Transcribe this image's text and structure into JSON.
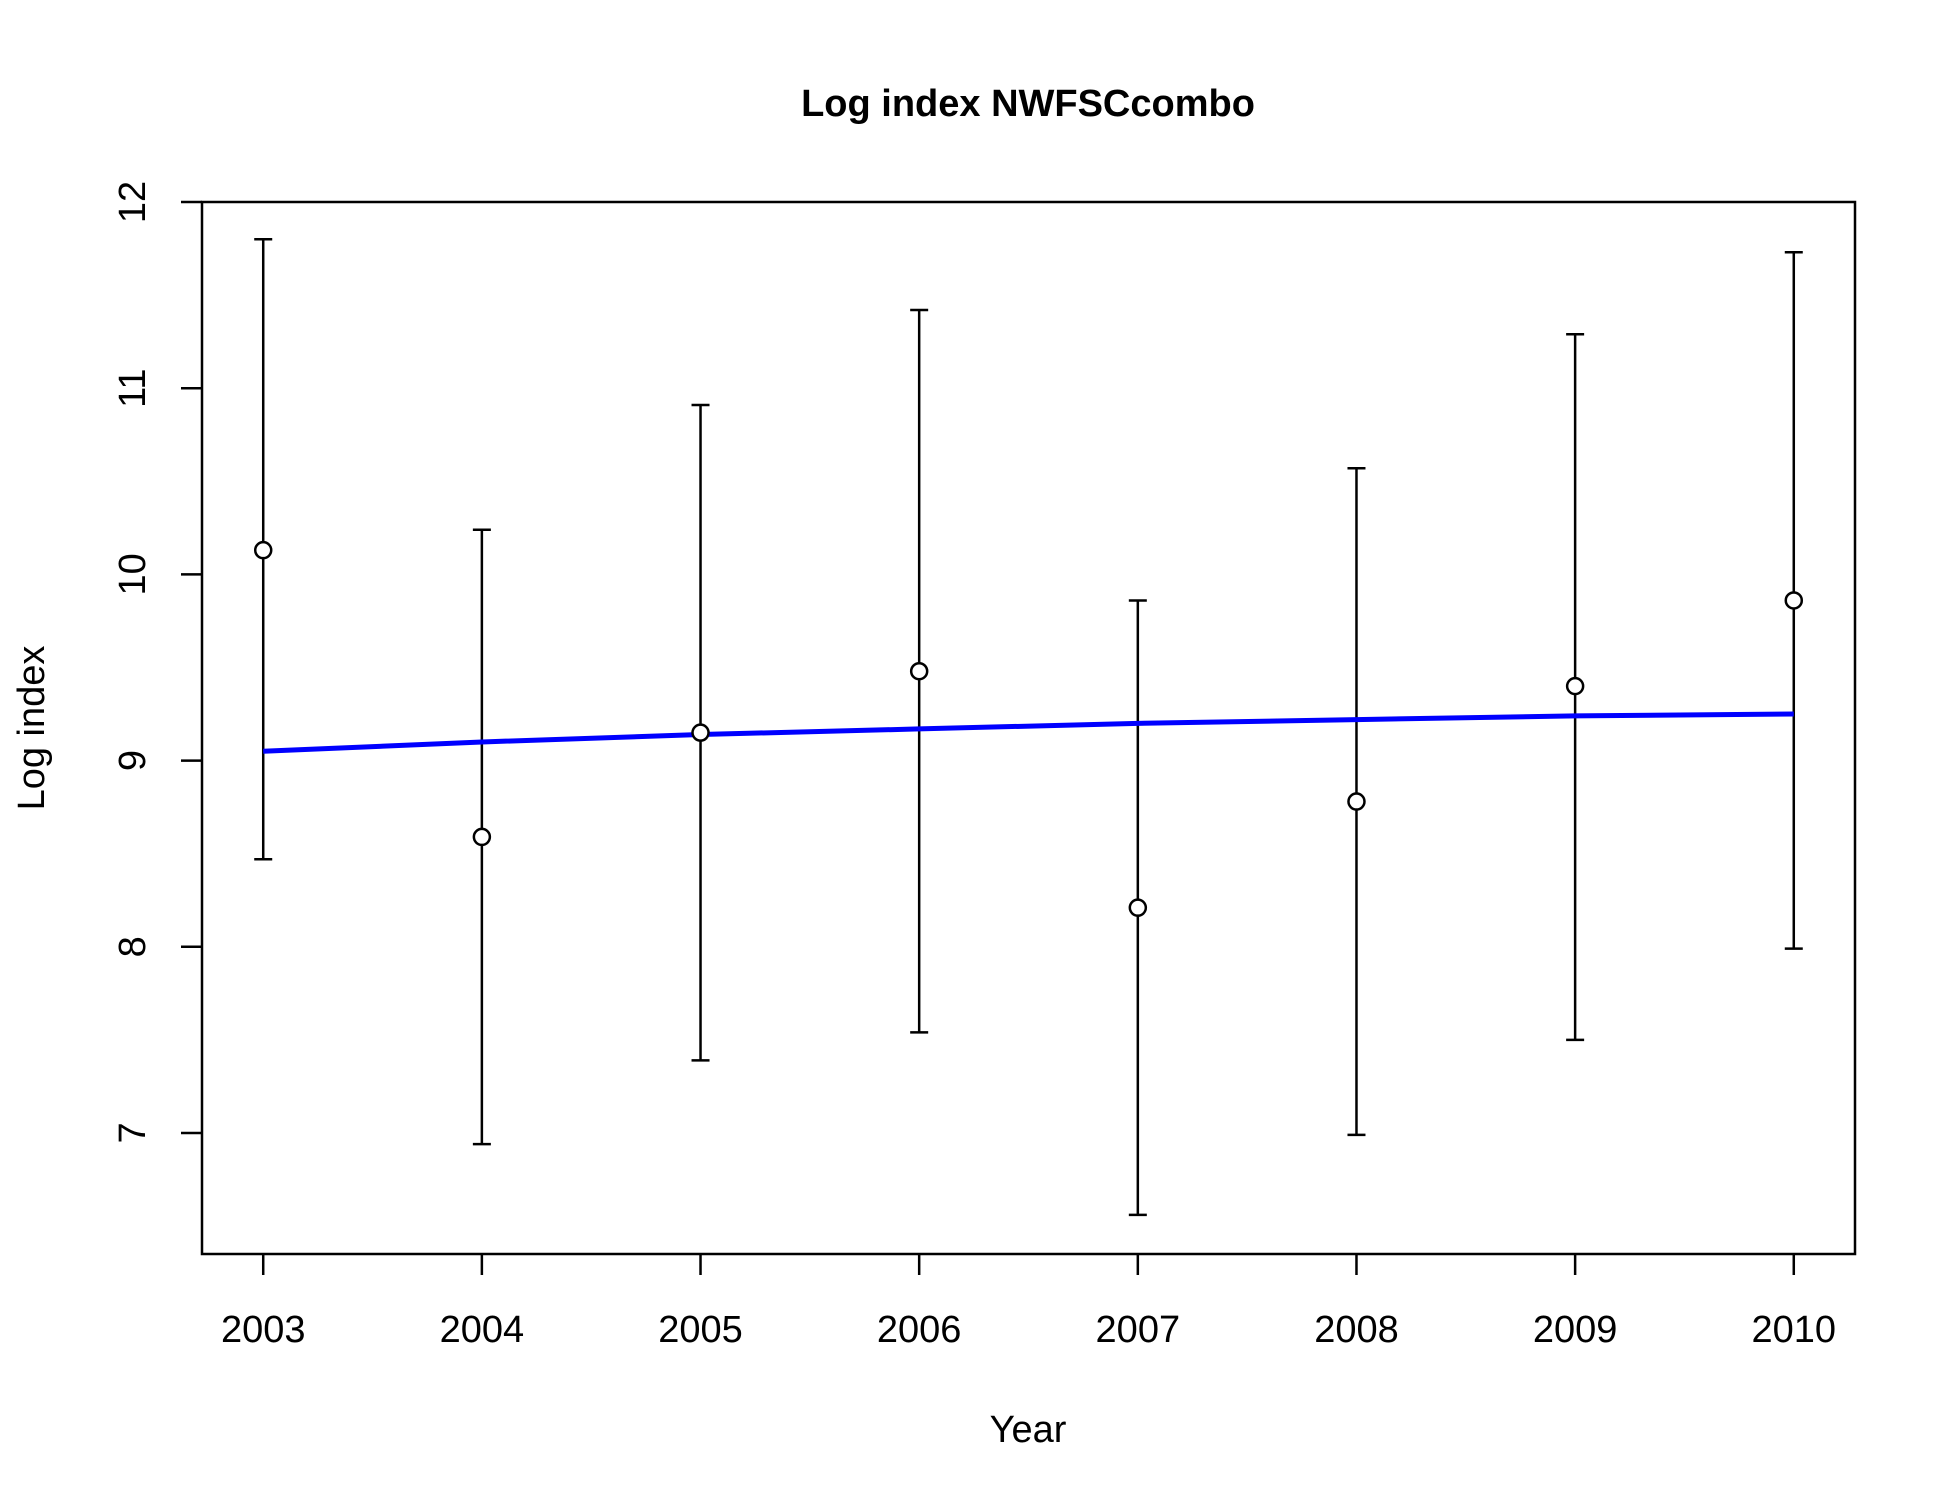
{
  "chart_data": {
    "type": "scatter",
    "title": "Log index NWFSCcombo",
    "xlabel": "Year",
    "ylabel": "Log index",
    "x": [
      2003,
      2004,
      2005,
      2006,
      2007,
      2008,
      2009,
      2010
    ],
    "xlim": [
      2002.72,
      2010.28
    ],
    "ylim": [
      6.35,
      12.0
    ],
    "xticks": [
      "2003",
      "2004",
      "2005",
      "2006",
      "2007",
      "2008",
      "2009",
      "2010"
    ],
    "yticks": [
      "7",
      "8",
      "9",
      "10",
      "11",
      "12"
    ],
    "grid": false,
    "legend": "none",
    "series": [
      {
        "kind": "points-with-error-bars",
        "color": "#000000",
        "y": [
          10.13,
          8.59,
          9.15,
          9.48,
          8.21,
          8.78,
          9.4,
          9.86
        ],
        "lower": [
          8.47,
          6.94,
          7.39,
          7.54,
          6.56,
          6.99,
          7.5,
          7.99
        ],
        "upper": [
          11.8,
          10.24,
          10.91,
          11.42,
          9.86,
          10.57,
          11.29,
          11.73
        ]
      },
      {
        "kind": "fit-line",
        "color": "#0000ff",
        "y": [
          9.05,
          9.1,
          9.14,
          9.17,
          9.2,
          9.22,
          9.24,
          9.25
        ]
      }
    ]
  }
}
